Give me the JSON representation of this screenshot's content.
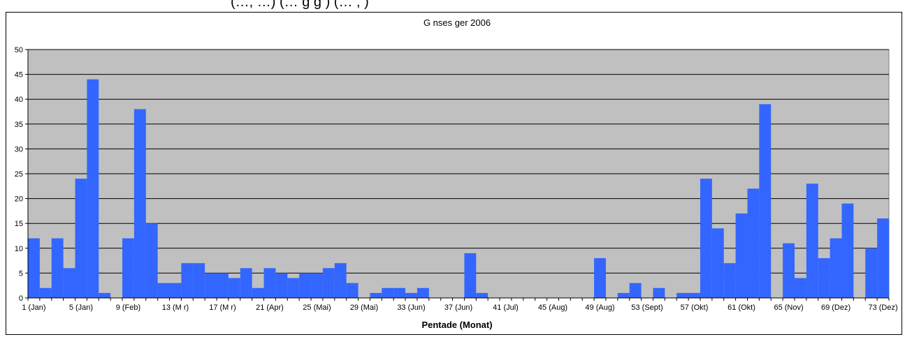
{
  "caption": "(…, …)   (…   g    g  )  (…       ,          )",
  "chart_data": {
    "type": "bar",
    "title": "G   nses    ger 2006",
    "xlabel": "Pentade (Monat)",
    "ylabel": "",
    "ylim": [
      0,
      50
    ],
    "yticks": [
      0,
      5,
      10,
      15,
      20,
      25,
      30,
      35,
      40,
      45,
      50
    ],
    "grid": true,
    "legend": "none",
    "plot_background": "#c0c0c0",
    "bar_color": "#3366ff",
    "categories": [
      1,
      2,
      3,
      4,
      5,
      6,
      7,
      8,
      9,
      10,
      11,
      12,
      13,
      14,
      15,
      16,
      17,
      18,
      19,
      20,
      21,
      22,
      23,
      24,
      25,
      26,
      27,
      28,
      29,
      30,
      31,
      32,
      33,
      34,
      35,
      36,
      37,
      38,
      39,
      40,
      41,
      42,
      43,
      44,
      45,
      46,
      47,
      48,
      49,
      50,
      51,
      52,
      53,
      54,
      55,
      56,
      57,
      58,
      59,
      60,
      61,
      62,
      63,
      64,
      65,
      66,
      67,
      68,
      69,
      70,
      71,
      72,
      73
    ],
    "values": [
      12,
      2,
      12,
      6,
      24,
      44,
      1,
      0,
      12,
      38,
      15,
      3,
      3,
      7,
      7,
      5,
      5,
      4,
      6,
      2,
      6,
      5,
      4,
      5,
      5,
      6,
      7,
      3,
      0,
      1,
      2,
      2,
      1,
      2,
      0,
      0,
      0,
      9,
      1,
      0,
      0,
      0,
      0,
      0,
      0,
      0,
      0,
      0,
      8,
      0,
      1,
      3,
      0,
      2,
      0,
      1,
      1,
      24,
      14,
      7,
      17,
      22,
      39,
      0,
      11,
      4,
      23,
      8,
      12,
      19,
      0,
      10,
      16
    ],
    "x_tick_labels": [
      "1 (Jan)",
      "5 (Jan)",
      "9 (Feb)",
      "13 (M   r)",
      "17 (M   r)",
      "21 (Apr)",
      "25 (Mai)",
      "29 (Mai)",
      "33 (Jun)",
      "37 (Jun)",
      "41 (Jul)",
      "45 (Aug)",
      "49 (Aug)",
      "53 (Sept)",
      "57 (Okt)",
      "61 (Okt)",
      "65 (Nov)",
      "69 (Dez)",
      "73 (Dez)"
    ]
  }
}
